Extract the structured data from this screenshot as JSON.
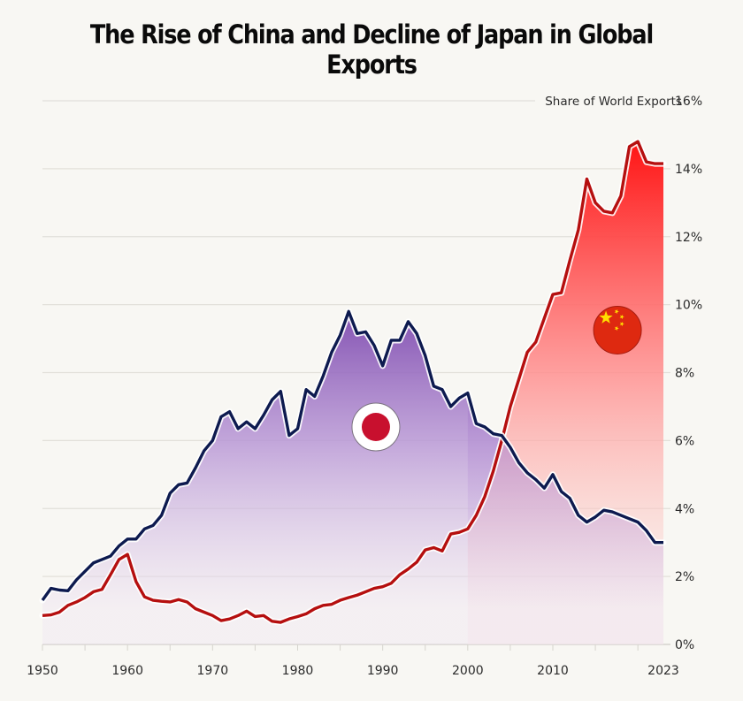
{
  "chart_data": {
    "type": "area",
    "title": "The Rise of China and Decline of Japan in Global Exports",
    "xlabel": "",
    "ylabel": "Share of World Exports",
    "ylim": [
      0,
      16
    ],
    "xlim": [
      1950,
      2023
    ],
    "y_ticks": [
      0,
      2,
      4,
      6,
      8,
      10,
      12,
      14,
      16
    ],
    "y_tick_labels": [
      "0%",
      "2%",
      "4%",
      "6%",
      "8%",
      "10%",
      "12%",
      "14%",
      "16%"
    ],
    "x_ticks": [
      1950,
      1960,
      1970,
      1980,
      1990,
      2000,
      2010,
      2023
    ],
    "x_tick_labels": [
      "1950",
      "1960",
      "1970",
      "1980",
      "1990",
      "2000",
      "2010",
      "2023"
    ],
    "grid": true,
    "legend": "none (flag icons mark series)",
    "x": [
      1950,
      1951,
      1952,
      1953,
      1954,
      1955,
      1956,
      1957,
      1958,
      1959,
      1960,
      1961,
      1962,
      1963,
      1964,
      1965,
      1966,
      1967,
      1968,
      1969,
      1970,
      1971,
      1972,
      1973,
      1974,
      1975,
      1976,
      1977,
      1978,
      1979,
      1980,
      1981,
      1982,
      1983,
      1984,
      1985,
      1986,
      1987,
      1988,
      1989,
      1990,
      1991,
      1992,
      1993,
      1994,
      1995,
      1996,
      1997,
      1998,
      1999,
      2000,
      2001,
      2002,
      2003,
      2004,
      2005,
      2006,
      2007,
      2008,
      2009,
      2010,
      2011,
      2012,
      2013,
      2014,
      2015,
      2016,
      2017,
      2018,
      2019,
      2020,
      2021,
      2022,
      2023
    ],
    "series": [
      {
        "name": "Japan",
        "flag": "japan-flag",
        "line_color": "#0d1a4f",
        "fill_color": "#7b4bb0",
        "values": [
          1.3,
          1.65,
          1.6,
          1.58,
          1.9,
          2.15,
          2.4,
          2.5,
          2.6,
          2.9,
          3.1,
          3.1,
          3.4,
          3.5,
          3.8,
          4.45,
          4.7,
          4.75,
          5.2,
          5.7,
          6.0,
          6.7,
          6.85,
          6.35,
          6.55,
          6.35,
          6.75,
          7.2,
          7.45,
          6.15,
          6.35,
          7.5,
          7.3,
          7.9,
          8.6,
          9.1,
          9.8,
          9.15,
          9.2,
          8.8,
          8.2,
          8.95,
          8.95,
          9.5,
          9.15,
          8.5,
          7.6,
          7.5,
          7.0,
          7.25,
          7.4,
          6.5,
          6.4,
          6.2,
          6.15,
          5.8,
          5.35,
          5.05,
          4.85,
          4.6,
          5.0,
          4.5,
          4.3,
          3.8,
          3.6,
          3.75,
          3.95,
          3.9,
          3.8,
          3.7,
          3.6,
          3.35,
          3.0,
          3.0
        ]
      },
      {
        "name": "China",
        "flag": "china-flag",
        "line_color": "#b50f0f",
        "fill_color": "#ff1e1e",
        "values": [
          0.85,
          0.87,
          0.95,
          1.15,
          1.25,
          1.38,
          1.55,
          1.62,
          2.05,
          2.5,
          2.65,
          1.85,
          1.4,
          1.3,
          1.27,
          1.25,
          1.32,
          1.25,
          1.05,
          0.95,
          0.85,
          0.7,
          0.75,
          0.85,
          0.98,
          0.82,
          0.85,
          0.68,
          0.65,
          0.75,
          0.82,
          0.9,
          1.05,
          1.15,
          1.18,
          1.3,
          1.38,
          1.45,
          1.55,
          1.65,
          1.7,
          1.8,
          2.05,
          2.22,
          2.42,
          2.78,
          2.85,
          2.75,
          3.25,
          3.3,
          3.4,
          3.8,
          4.35,
          5.1,
          6.0,
          7.0,
          7.8,
          8.6,
          8.9,
          9.6,
          10.3,
          10.35,
          11.3,
          12.2,
          13.7,
          13.0,
          12.75,
          12.7,
          13.2,
          14.65,
          14.8,
          14.2,
          14.15,
          14.15
        ]
      }
    ]
  }
}
